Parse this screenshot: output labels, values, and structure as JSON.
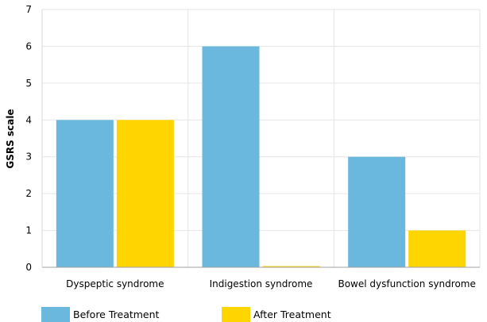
{
  "chart_data": {
    "type": "bar",
    "categories": [
      "Dyspeptic syndrome",
      "Indigestion syndrome",
      "Bowel dysfunction syndrome"
    ],
    "series": [
      {
        "name": "Before Treatment",
        "values": [
          4,
          6,
          3
        ],
        "color": "#6bb8de"
      },
      {
        "name": "After Treatment",
        "values": [
          4,
          0,
          1
        ],
        "color": "#ffd500"
      }
    ],
    "ylabel": "GSRS scale",
    "ylim": [
      0,
      7
    ],
    "yticks": [
      "0",
      "1",
      "2",
      "3",
      "4",
      "5",
      "6",
      "7"
    ],
    "grid": true,
    "legend_position": "bottom-left"
  }
}
